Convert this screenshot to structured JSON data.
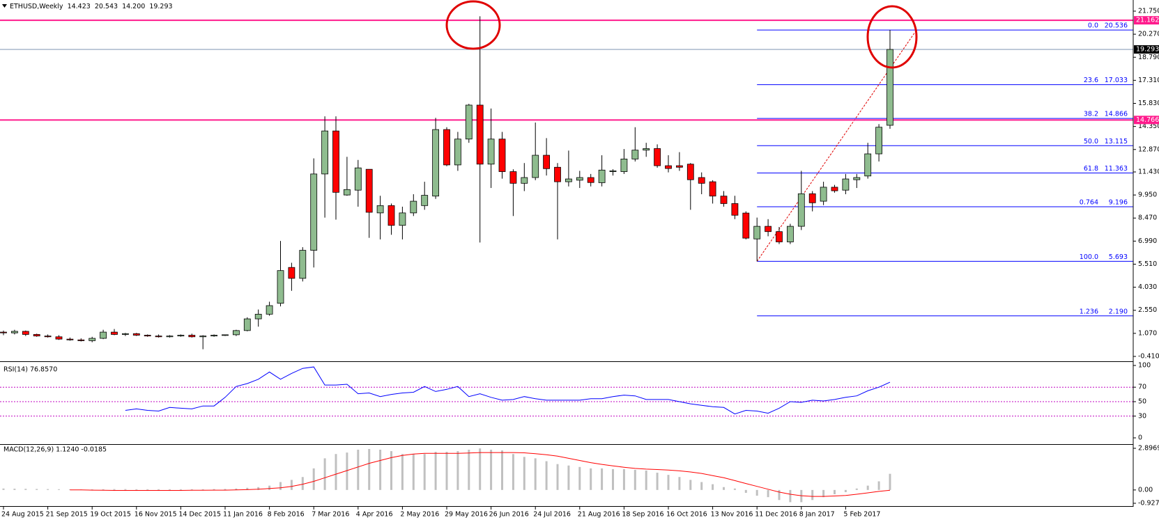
{
  "chart_data": [
    {
      "type": "candlestick",
      "title": "ETHUSD,Weekly",
      "ohlc_labels": [
        "14.423",
        "20.543",
        "14.200",
        "19.293"
      ],
      "categories": [
        "24 Aug 2015",
        null,
        null,
        null,
        "21 Sep 2015",
        null,
        null,
        null,
        "19 Oct 2015",
        null,
        null,
        null,
        "16 Nov 2015",
        null,
        null,
        null,
        "14 Dec 2015",
        null,
        null,
        null,
        "11 Jan 2016",
        null,
        null,
        null,
        "8 Feb 2016",
        null,
        null,
        null,
        "7 Mar 2016",
        null,
        null,
        null,
        "4 Apr 2016",
        null,
        null,
        null,
        "2 May 2016",
        null,
        null,
        null,
        "29 May 2016",
        null,
        null,
        null,
        "26 Jun 2016",
        null,
        null,
        null,
        "24 Jul 2016",
        null,
        null,
        null,
        "21 Aug 2016",
        null,
        null,
        null,
        "18 Sep 2016",
        null,
        null,
        null,
        "16 Oct 2016",
        null,
        null,
        null,
        "13 Nov 2016",
        null,
        null,
        null,
        "11 Dec 2016",
        null,
        null,
        null,
        "8 Jan 2017",
        null,
        null,
        null,
        "5 Feb 2017",
        null,
        null,
        null,
        null
      ],
      "ohlc": [
        [
          1.15,
          1.25,
          0.95,
          1.1
        ],
        [
          1.1,
          1.3,
          1.0,
          1.2
        ],
        [
          1.2,
          1.25,
          0.9,
          1.0
        ],
        [
          1.0,
          1.05,
          0.85,
          0.9
        ],
        [
          0.9,
          1.0,
          0.8,
          0.85
        ],
        [
          0.85,
          0.95,
          0.65,
          0.7
        ],
        [
          0.7,
          0.8,
          0.6,
          0.65
        ],
        [
          0.65,
          0.75,
          0.55,
          0.6
        ],
        [
          0.6,
          0.85,
          0.5,
          0.75
        ],
        [
          0.75,
          1.3,
          0.7,
          1.15
        ],
        [
          1.15,
          1.35,
          0.95,
          1.0
        ],
        [
          1.0,
          1.1,
          0.9,
          1.05
        ],
        [
          1.05,
          1.1,
          0.9,
          0.95
        ],
        [
          0.95,
          1.0,
          0.85,
          0.9
        ],
        [
          0.9,
          1.0,
          0.8,
          0.85
        ],
        [
          0.85,
          0.95,
          0.8,
          0.9
        ],
        [
          0.9,
          1.0,
          0.85,
          0.95
        ],
        [
          0.95,
          1.05,
          0.8,
          0.85
        ],
        [
          0.85,
          0.95,
          0.05,
          0.9
        ],
        [
          0.9,
          1.0,
          0.85,
          0.95
        ],
        [
          0.95,
          1.0,
          0.9,
          0.98
        ],
        [
          0.98,
          1.3,
          0.9,
          1.25
        ],
        [
          1.25,
          2.1,
          1.2,
          2.0
        ],
        [
          2.0,
          2.6,
          1.5,
          2.3
        ],
        [
          2.3,
          3.1,
          2.2,
          2.85
        ],
        [
          3.0,
          7.0,
          2.8,
          5.1
        ],
        [
          5.3,
          5.6,
          3.8,
          4.6
        ],
        [
          4.6,
          6.6,
          4.4,
          6.4
        ],
        [
          6.4,
          12.3,
          5.3,
          11.3
        ],
        [
          11.3,
          15.0,
          8.5,
          14.06
        ],
        [
          14.06,
          15.0,
          8.37,
          10.12
        ],
        [
          9.95,
          12.4,
          9.9,
          10.3
        ],
        [
          10.26,
          12.2,
          9.2,
          11.69
        ],
        [
          11.6,
          11.6,
          7.2,
          8.84
        ],
        [
          8.8,
          9.9,
          7.1,
          9.27
        ],
        [
          9.27,
          9.4,
          7.4,
          8.0
        ],
        [
          8.0,
          9.2,
          7.1,
          8.8
        ],
        [
          8.8,
          10.0,
          8.6,
          9.55
        ],
        [
          9.27,
          10.8,
          9.0,
          9.93
        ],
        [
          9.88,
          14.9,
          9.7,
          14.15
        ],
        [
          14.15,
          14.3,
          11.8,
          11.88
        ],
        [
          11.88,
          14.0,
          11.5,
          13.54
        ],
        [
          13.54,
          15.8,
          13.3,
          15.72
        ],
        [
          15.72,
          21.42,
          6.9,
          11.93
        ],
        [
          11.93,
          15.5,
          10.4,
          13.54
        ],
        [
          13.54,
          14.0,
          11.0,
          11.45
        ],
        [
          11.45,
          11.6,
          8.6,
          10.7
        ],
        [
          10.7,
          12.0,
          10.2,
          11.07
        ],
        [
          11.07,
          14.6,
          10.9,
          12.5
        ],
        [
          12.5,
          13.6,
          11.2,
          11.64
        ],
        [
          11.73,
          12.0,
          7.1,
          10.8
        ],
        [
          10.8,
          12.8,
          10.5,
          10.98
        ],
        [
          10.9,
          11.5,
          10.4,
          11.07
        ],
        [
          11.07,
          11.3,
          10.5,
          10.75
        ],
        [
          10.74,
          12.5,
          10.5,
          11.55
        ],
        [
          11.45,
          11.6,
          11.2,
          11.5
        ],
        [
          11.45,
          12.9,
          11.3,
          12.26
        ],
        [
          12.26,
          14.3,
          12.1,
          12.83
        ],
        [
          12.83,
          13.3,
          12.4,
          12.93
        ],
        [
          12.93,
          13.2,
          11.7,
          11.83
        ],
        [
          11.83,
          12.5,
          11.4,
          11.65
        ],
        [
          11.83,
          12.7,
          11.5,
          11.73
        ],
        [
          11.93,
          12.0,
          9.0,
          10.93
        ],
        [
          11.07,
          11.4,
          10.0,
          10.7
        ],
        [
          10.8,
          10.9,
          9.4,
          9.88
        ],
        [
          9.88,
          10.2,
          9.2,
          9.4
        ],
        [
          9.4,
          9.9,
          8.4,
          8.65
        ],
        [
          8.79,
          8.9,
          7.1,
          7.18
        ],
        [
          7.13,
          8.5,
          5.693,
          7.94
        ],
        [
          7.94,
          8.4,
          7.3,
          7.6
        ],
        [
          7.6,
          7.9,
          6.8,
          6.94
        ],
        [
          6.94,
          8.1,
          6.8,
          7.94
        ],
        [
          7.94,
          11.5,
          7.7,
          10.03
        ],
        [
          10.03,
          10.2,
          8.9,
          9.45
        ],
        [
          9.55,
          10.8,
          9.3,
          10.45
        ],
        [
          10.45,
          10.6,
          10.1,
          10.22
        ],
        [
          10.26,
          11.3,
          10.0,
          10.98
        ],
        [
          10.93,
          11.3,
          10.4,
          11.07
        ],
        [
          11.17,
          13.3,
          11.0,
          12.59
        ],
        [
          12.59,
          14.5,
          12.1,
          14.3
        ],
        [
          14.423,
          20.543,
          14.2,
          19.293
        ]
      ],
      "up_color": "#8fbc8f",
      "down_color": "#ff0000",
      "ylim": [
        -0.41,
        21.75
      ],
      "yticks": [
        {
          "value": 21.75,
          "label": "21.750"
        },
        {
          "value": 20.27,
          "label": "20.270"
        },
        {
          "value": 18.79,
          "label": "18.790"
        },
        {
          "value": 17.31,
          "label": "17.310"
        },
        {
          "value": 15.83,
          "label": "15.830"
        },
        {
          "value": 14.35,
          "label": "14.350"
        },
        {
          "value": 12.87,
          "label": "12.870"
        },
        {
          "value": 11.43,
          "label": "11.430"
        },
        {
          "value": 9.95,
          "label": "9.950"
        },
        {
          "value": 8.47,
          "label": "8.470"
        },
        {
          "value": 6.99,
          "label": "6.990"
        },
        {
          "value": 5.51,
          "label": "5.510"
        },
        {
          "value": 4.03,
          "label": "4.030"
        },
        {
          "value": 2.55,
          "label": "2.550"
        },
        {
          "value": 1.07,
          "label": "1.070"
        },
        {
          "value": -0.41,
          "label": "-0.410"
        }
      ],
      "price_lines": [
        {
          "value": 21.162,
          "color": "#ff1a8c",
          "box": "#ff1a8c"
        },
        {
          "value": 19.293,
          "color": "#7d93b0",
          "box": "#000000"
        },
        {
          "value": 14.766,
          "color": "#ff1a8c",
          "box": "#ff1a8c"
        }
      ],
      "fib": {
        "color": "#0000ff",
        "levels": [
          "0.0",
          "23.6",
          "38.2",
          "50.0",
          "61.8",
          "0.764",
          "100.0",
          "1.236"
        ],
        "values": [
          20.536,
          17.033,
          14.866,
          13.115,
          11.363,
          9.196,
          5.693,
          2.19
        ],
        "value_labels": [
          "20.536",
          "17.033",
          "14.866",
          "13.115",
          "11.363",
          "9.196",
          "5.693",
          "2.190"
        ]
      }
    },
    {
      "type": "line",
      "title": "RSI(14) 76.8570",
      "color": "#0000ff",
      "level_color": "#c000c0",
      "values": [
        null,
        null,
        null,
        null,
        null,
        null,
        null,
        null,
        null,
        null,
        null,
        38,
        40,
        38,
        37,
        42,
        41,
        40,
        44,
        44,
        56,
        71,
        75,
        81,
        91,
        81,
        89,
        96,
        98,
        73,
        73,
        74,
        61,
        62,
        57,
        60,
        62,
        63,
        71,
        64,
        67,
        71,
        57,
        61,
        56,
        52,
        53,
        57,
        54,
        52,
        52,
        52,
        52,
        54,
        54,
        57,
        59,
        58,
        53,
        53,
        53,
        50,
        47,
        45,
        43,
        42,
        33,
        38,
        37,
        34,
        41,
        50,
        49,
        52,
        51,
        53,
        56,
        58,
        65,
        70,
        76.857
      ],
      "ylim": [
        0,
        100
      ],
      "yticks": [
        100,
        70,
        50,
        30,
        0
      ],
      "levels": [
        70,
        50,
        30
      ]
    },
    {
      "type": "macd",
      "title": "MACD(12,26,9) 1.1240 -0.0185",
      "bar_color": "#c0c0c0",
      "signal_color": "#ff0000",
      "values": [
        0.1,
        0.09,
        0.08,
        0.07,
        0.06,
        0.05,
        0.04,
        0.03,
        0.04,
        0.05,
        0.06,
        0.06,
        0.05,
        0.05,
        0.05,
        0.05,
        0.05,
        0.05,
        0.05,
        0.06,
        0.07,
        0.1,
        0.15,
        0.2,
        0.3,
        0.55,
        0.7,
        0.9,
        1.5,
        2.2,
        2.5,
        2.6,
        2.8,
        2.85,
        2.8,
        2.7,
        2.5,
        2.5,
        2.5,
        2.65,
        2.65,
        2.7,
        2.8,
        2.89,
        2.8,
        2.75,
        2.5,
        2.3,
        2.2,
        2.0,
        1.8,
        1.7,
        1.6,
        1.5,
        1.5,
        1.45,
        1.45,
        1.4,
        1.35,
        1.2,
        1.05,
        0.9,
        0.7,
        0.55,
        0.4,
        0.2,
        0.1,
        -0.2,
        -0.4,
        -0.5,
        -0.7,
        -0.85,
        -0.85,
        -0.7,
        -0.5,
        -0.3,
        -0.15,
        0.1,
        0.3,
        0.6,
        1.124
      ],
      "signal": [
        null,
        null,
        null,
        null,
        null,
        null,
        0.0,
        0.0,
        -0.01,
        -0.02,
        -0.03,
        -0.03,
        -0.03,
        -0.03,
        -0.03,
        -0.03,
        -0.03,
        -0.02,
        -0.02,
        -0.01,
        -0.01,
        0.0,
        0.02,
        0.05,
        0.1,
        0.15,
        0.25,
        0.4,
        0.6,
        0.85,
        1.1,
        1.35,
        1.6,
        1.85,
        2.05,
        2.25,
        2.4,
        2.5,
        2.55,
        2.55,
        2.55,
        2.55,
        2.57,
        2.6,
        2.6,
        2.6,
        2.6,
        2.58,
        2.52,
        2.45,
        2.35,
        2.2,
        2.05,
        1.9,
        1.78,
        1.67,
        1.58,
        1.5,
        1.45,
        1.42,
        1.38,
        1.33,
        1.25,
        1.15,
        1.0,
        0.85,
        0.65,
        0.45,
        0.25,
        0.05,
        -0.15,
        -0.3,
        -0.4,
        -0.45,
        -0.45,
        -0.42,
        -0.38,
        -0.3,
        -0.2,
        -0.1,
        -0.0185
      ],
      "ylim": [
        -0.9271,
        2.8969
      ],
      "yticks": [
        2.8969,
        {
          "value": 0,
          "label": "0.00"
        },
        -0.9271
      ]
    }
  ]
}
